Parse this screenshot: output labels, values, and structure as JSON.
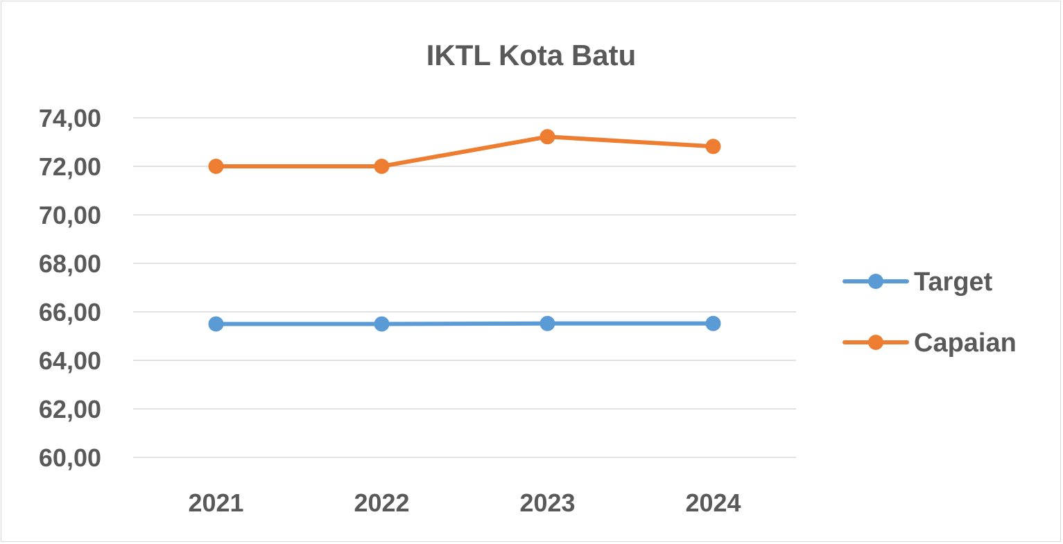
{
  "chart_data": {
    "type": "line",
    "title": "IKTL Kota Batu",
    "xlabel": "",
    "ylabel": "",
    "categories": [
      "2021",
      "2022",
      "2023",
      "2024"
    ],
    "ylim": [
      60,
      74
    ],
    "yticks": [
      60,
      62,
      64,
      66,
      68,
      70,
      72,
      74
    ],
    "ytick_labels": [
      "60,00",
      "62,00",
      "64,00",
      "66,00",
      "68,00",
      "70,00",
      "72,00",
      "74,00"
    ],
    "grid": true,
    "legend_position": "right",
    "series": [
      {
        "name": "Target",
        "color": "#5b9bd5",
        "values": [
          65.5,
          65.5,
          65.52,
          65.52
        ]
      },
      {
        "name": "Capaian",
        "color": "#ed7d31",
        "values": [
          72.0,
          72.0,
          73.22,
          72.82
        ]
      }
    ]
  }
}
